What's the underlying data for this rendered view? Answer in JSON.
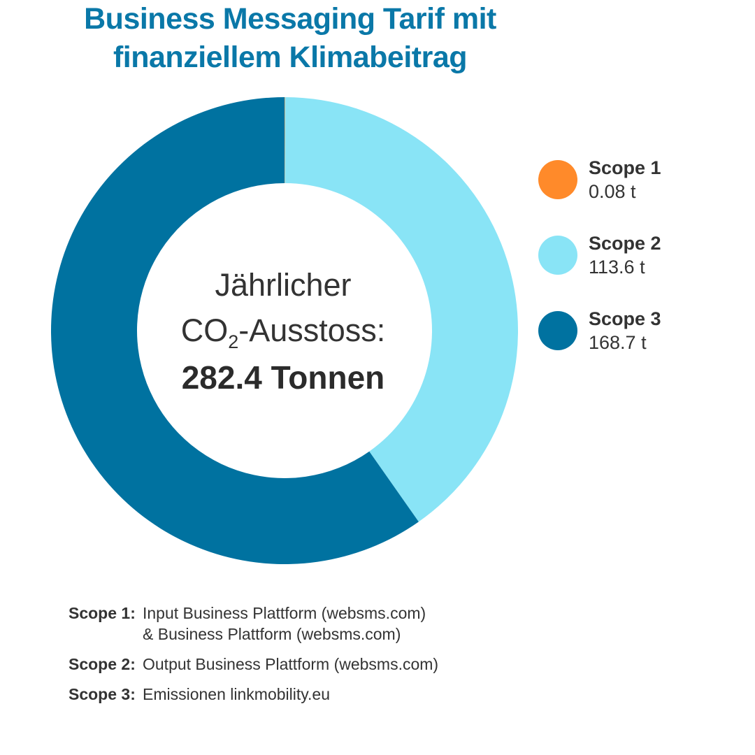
{
  "header": {
    "title_line1": "Business Messaging Tarif mit",
    "title_line2": "finanziellem Klimabeitrag"
  },
  "center": {
    "line1": "Jährlicher",
    "line2_prefix": "CO",
    "line2_sub": "2",
    "line2_suffix": "-Ausstoss:",
    "total": "282.4 Tonnen"
  },
  "colors": {
    "scope1": "#ff8a2a",
    "scope2": "#89e4f6",
    "scope3": "#0072a0",
    "title": "#0a78a8"
  },
  "chart_data": {
    "type": "pie",
    "variant": "donut",
    "title": "Business Messaging Tarif mit finanziellem Klimabeitrag",
    "unit": "t",
    "total": 282.4,
    "series": [
      {
        "name": "Scope 1",
        "value": 0.08,
        "value_label": "0.08 t",
        "color": "#ff8a2a"
      },
      {
        "name": "Scope 2",
        "value": 113.6,
        "value_label": "113.6 t",
        "color": "#89e4f6"
      },
      {
        "name": "Scope 3",
        "value": 168.7,
        "value_label": "168.7 t",
        "color": "#0072a0"
      }
    ],
    "legend_position": "right"
  },
  "notes": [
    {
      "label": "Scope 1:",
      "lines": [
        "Input Business Plattform (websms.com)",
        "& Business Plattform (websms.com)"
      ]
    },
    {
      "label": "Scope 2:",
      "lines": [
        "Output Business Plattform (websms.com)"
      ]
    },
    {
      "label": "Scope 3:",
      "lines": [
        "Emissionen linkmobility.eu"
      ]
    }
  ]
}
